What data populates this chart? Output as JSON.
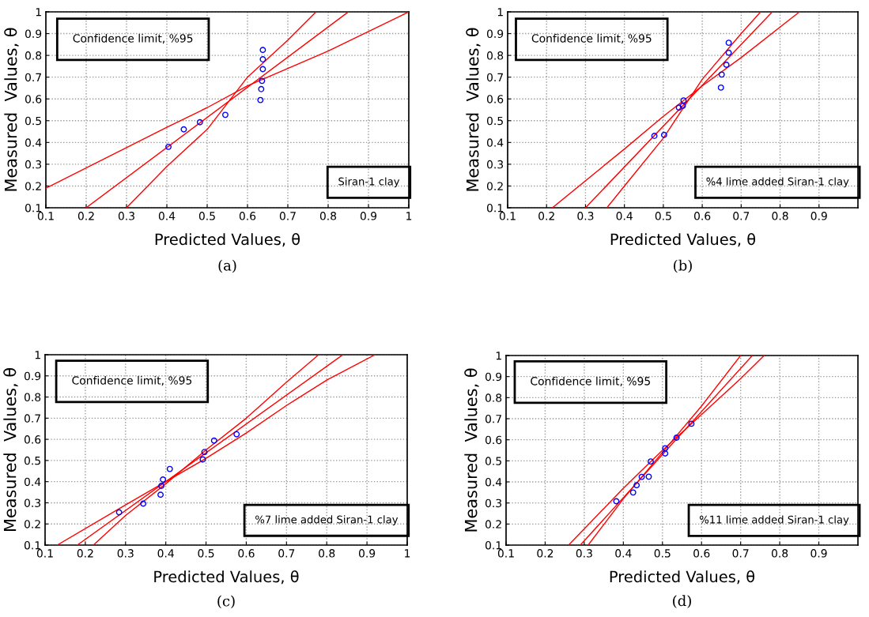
{
  "chart_data": [
    {
      "type": "scatter",
      "xlabel": "Predicted Values, θ",
      "ylabel": "Measured  Values, θ",
      "xlim": [
        0.1,
        1
      ],
      "ylim": [
        0.1,
        1
      ],
      "xticks": [
        0.1,
        0.2,
        0.3,
        0.4,
        0.5,
        0.6,
        0.7,
        0.8,
        0.9,
        1
      ],
      "yticks": [
        0.1,
        0.2,
        0.3,
        0.4,
        0.5,
        0.6,
        0.7,
        0.8,
        0.9,
        1
      ],
      "grid": true,
      "annotations": [
        "Confidence limit, %95",
        "Siran-1 clay",
        "(a)"
      ],
      "series": [
        {
          "marker": "circle",
          "color": "#0000ff",
          "x": [
            0.404,
            0.442,
            0.482,
            0.545,
            0.632,
            0.634,
            0.636,
            0.638,
            0.638,
            0.638
          ],
          "values": [
            0.38,
            0.46,
            0.493,
            0.527,
            0.595,
            0.645,
            0.683,
            0.737,
            0.782,
            0.825
          ]
        },
        {
          "type": "line",
          "color": "#ff0000",
          "x": [
            0.2,
            0.85
          ],
          "values": [
            0.1,
            1.0
          ]
        },
        {
          "type": "line",
          "color": "#ff0000",
          "x": [
            0.1,
            0.4,
            0.5,
            0.6,
            0.7,
            0.8,
            1.0
          ],
          "values": [
            0.19,
            0.47,
            0.56,
            0.66,
            0.74,
            0.82,
            1.0
          ]
        },
        {
          "type": "line",
          "color": "#ff0000",
          "x": [
            0.3,
            0.4,
            0.5,
            0.6,
            0.7,
            0.77
          ],
          "values": [
            0.1,
            0.29,
            0.46,
            0.7,
            0.87,
            1.0
          ]
        }
      ]
    },
    {
      "type": "scatter",
      "xlabel": "Predicted Values, θ",
      "ylabel": "Measured  Values, θ",
      "xlim": [
        0.1,
        1
      ],
      "ylim": [
        0.1,
        1
      ],
      "xticks": [
        0.1,
        0.2,
        0.3,
        0.4,
        0.5,
        0.6,
        0.7,
        0.8,
        0.9
      ],
      "yticks": [
        0.1,
        0.2,
        0.3,
        0.4,
        0.5,
        0.6,
        0.7,
        0.8,
        0.9,
        1
      ],
      "grid": true,
      "annotations": [
        "Confidence limit, %95",
        "%4 lime added Siran-1 clay",
        "(b)"
      ],
      "series": [
        {
          "marker": "circle",
          "color": "#0000ff",
          "x": [
            0.477,
            0.502,
            0.54,
            0.55,
            0.552,
            0.648,
            0.65,
            0.662,
            0.668,
            0.668
          ],
          "values": [
            0.43,
            0.435,
            0.56,
            0.568,
            0.593,
            0.652,
            0.712,
            0.757,
            0.812,
            0.858
          ]
        },
        {
          "type": "line",
          "color": "#ff0000",
          "x": [
            0.3,
            0.78
          ],
          "values": [
            0.1,
            1.0
          ]
        },
        {
          "type": "line",
          "color": "#ff0000",
          "x": [
            0.215,
            0.4,
            0.5,
            0.6,
            0.7,
            0.85
          ],
          "values": [
            0.1,
            0.37,
            0.52,
            0.66,
            0.79,
            1.0
          ]
        },
        {
          "type": "line",
          "color": "#ff0000",
          "x": [
            0.355,
            0.4,
            0.5,
            0.6,
            0.7,
            0.75
          ],
          "values": [
            0.1,
            0.2,
            0.42,
            0.69,
            0.9,
            1.0
          ]
        }
      ]
    },
    {
      "type": "scatter",
      "xlabel": "Predicted Values, θ",
      "ylabel": "Measured  Values, θ",
      "xlim": [
        0.1,
        1
      ],
      "ylim": [
        0.1,
        1
      ],
      "xticks": [
        0.1,
        0.2,
        0.3,
        0.4,
        0.5,
        0.6,
        0.7,
        0.8,
        0.9,
        1
      ],
      "yticks": [
        0.1,
        0.2,
        0.3,
        0.4,
        0.5,
        0.6,
        0.7,
        0.8,
        0.9,
        1
      ],
      "grid": true,
      "annotations": [
        "Confidence limit, %95",
        "%7 lime added Siran-1 clay",
        "(c)"
      ],
      "series": [
        {
          "marker": "circle",
          "color": "#0000ff",
          "x": [
            0.284,
            0.344,
            0.387,
            0.389,
            0.393,
            0.41,
            0.492,
            0.496,
            0.52,
            0.576
          ],
          "values": [
            0.255,
            0.296,
            0.338,
            0.38,
            0.41,
            0.46,
            0.505,
            0.54,
            0.594,
            0.624
          ]
        },
        {
          "type": "line",
          "color": "#ff0000",
          "x": [
            0.18,
            0.84
          ],
          "values": [
            0.1,
            1.0
          ]
        },
        {
          "type": "line",
          "color": "#ff0000",
          "x": [
            0.13,
            0.3,
            0.4,
            0.5,
            0.6,
            0.7,
            0.8,
            0.92
          ],
          "values": [
            0.1,
            0.29,
            0.4,
            0.51,
            0.63,
            0.76,
            0.88,
            1.0
          ]
        },
        {
          "type": "line",
          "color": "#ff0000",
          "x": [
            0.22,
            0.3,
            0.4,
            0.5,
            0.6,
            0.7,
            0.78
          ],
          "values": [
            0.1,
            0.24,
            0.39,
            0.55,
            0.7,
            0.87,
            1.0
          ]
        }
      ]
    },
    {
      "type": "scatter",
      "xlabel": "Predicted Values, θ",
      "ylabel": "Measured  Values, θ",
      "xlim": [
        0.1,
        1
      ],
      "ylim": [
        0.1,
        1
      ],
      "xticks": [
        0.1,
        0.2,
        0.3,
        0.4,
        0.5,
        0.6,
        0.7,
        0.8,
        0.9
      ],
      "yticks": [
        0.1,
        0.2,
        0.3,
        0.4,
        0.5,
        0.6,
        0.7,
        0.8,
        0.9,
        1
      ],
      "grid": true,
      "annotations": [
        "Confidence limit, %95",
        "%11 lime added Siran-1 clay",
        "(d)"
      ],
      "series": [
        {
          "marker": "circle",
          "color": "#0000ff",
          "x": [
            0.382,
            0.425,
            0.434,
            0.447,
            0.465,
            0.47,
            0.507,
            0.507,
            0.536,
            0.574
          ],
          "values": [
            0.308,
            0.35,
            0.384,
            0.424,
            0.425,
            0.497,
            0.535,
            0.56,
            0.61,
            0.676
          ]
        },
        {
          "type": "line",
          "color": "#ff0000",
          "x": [
            0.29,
            0.73
          ],
          "values": [
            0.1,
            1.0
          ]
        },
        {
          "type": "line",
          "color": "#ff0000",
          "x": [
            0.26,
            0.4,
            0.5,
            0.6,
            0.7,
            0.76
          ],
          "values": [
            0.1,
            0.37,
            0.55,
            0.72,
            0.89,
            1.0
          ]
        },
        {
          "type": "line",
          "color": "#ff0000",
          "x": [
            0.31,
            0.4,
            0.5,
            0.6,
            0.7
          ],
          "values": [
            0.1,
            0.32,
            0.54,
            0.76,
            1.0
          ]
        }
      ]
    }
  ]
}
